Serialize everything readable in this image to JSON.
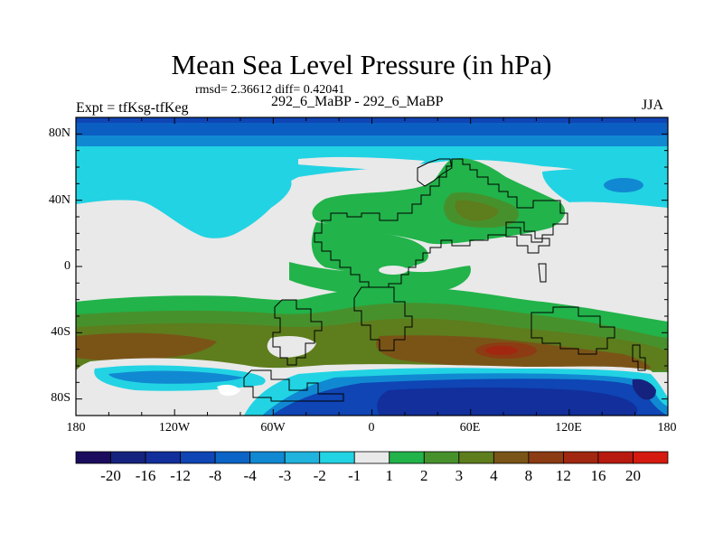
{
  "title": "Mean Sea Level Pressure (in hPa)",
  "subtitle_stats": "rmsd= 2.36612 diff= 0.42041",
  "left_label": "Expt = tfKsg-tfKeg",
  "center_label": "292_6_MaBP - 292_6_MaBP",
  "right_label": "JJA",
  "y_axis": {
    "ticks": [
      "80N",
      "40N",
      "0",
      "40S",
      "80S"
    ]
  },
  "x_axis": {
    "ticks": [
      "180",
      "120W",
      "60W",
      "0",
      "60E",
      "120E",
      "180"
    ]
  },
  "colorbar": {
    "labels": [
      "-20",
      "-16",
      "-12",
      "-8",
      "-4",
      "-3",
      "-2",
      "-1",
      "1",
      "2",
      "3",
      "4",
      "8",
      "12",
      "16",
      "20"
    ],
    "colors": [
      "#1b0c5e",
      "#16237e",
      "#122f9c",
      "#0f45b5",
      "#0b64c6",
      "#1189d2",
      "#1fb3dd",
      "#22d3e3",
      "#e9e9e9",
      "#22b34a",
      "#47912d",
      "#5e7d1d",
      "#7a5417",
      "#8c3b12",
      "#a12710",
      "#b81a10",
      "#d51a10"
    ]
  },
  "colors": {
    "land_outline": "#000000",
    "neutral": "#e9e9e9"
  }
}
